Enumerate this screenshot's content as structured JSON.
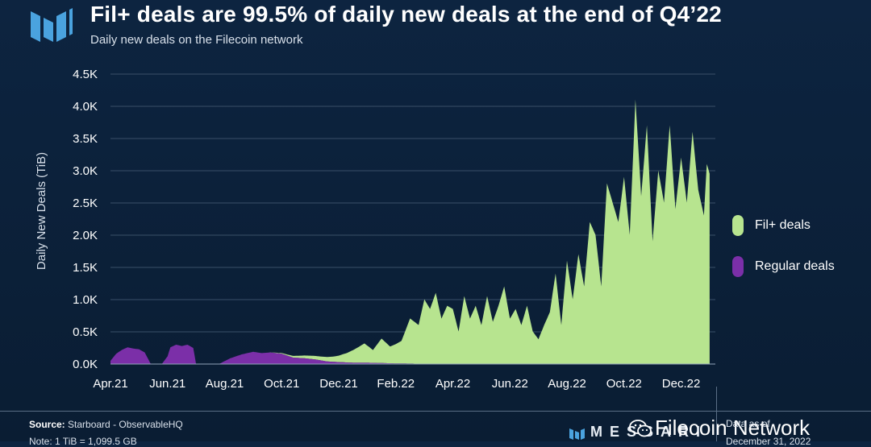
{
  "header": {
    "title": "Fil+ deals are 99.5% of daily new deals at the end of Q4’22",
    "subtitle": "Daily new deals on the Filecoin network"
  },
  "footer": {
    "source_label": "Source:",
    "source_text": "Starboard - ObservableHQ",
    "note": "Note: 1 TiB = 1,099.5 GB",
    "brand": "MESSARI",
    "wechat": "Filecoin Network",
    "data_as_of": "Data as of",
    "data_date": "December 31, 2022"
  },
  "colors": {
    "background": "#0b1f36",
    "fil_plus": "#b7e48f",
    "regular": "#7b2fa8",
    "grid": "#3a4f68"
  },
  "chart_data": {
    "type": "area",
    "title": "Fil+ deals are 99.5% of daily new deals at the end of Q4’22",
    "subtitle": "Daily new deals on the Filecoin network",
    "ylabel": "Daily New Deals (TiB)",
    "xlabel": "",
    "ylim": [
      0,
      4500
    ],
    "yticks": [
      0,
      500,
      1000,
      1500,
      2000,
      2500,
      3000,
      3500,
      4000,
      4500
    ],
    "ytick_labels": [
      "0.0K",
      "0.5K",
      "1.0K",
      "1.5K",
      "2.0K",
      "2.5K",
      "3.0K",
      "3.5K",
      "4.0K",
      "4.5K"
    ],
    "xlim": [
      0,
      21.2
    ],
    "xtick_positions": [
      0,
      2,
      4,
      6,
      8,
      10,
      12,
      14,
      16,
      18,
      20
    ],
    "xtick_labels": [
      "Apr.21",
      "Jun.21",
      "Aug.21",
      "Oct.21",
      "Dec.21",
      "Feb.22",
      "Apr.22",
      "Jun.22",
      "Aug.22",
      "Oct.22",
      "Dec.22"
    ],
    "x_unit": "months since Apr 2021",
    "grid": true,
    "legend_position": "right",
    "stacked": true,
    "series": [
      {
        "name": "Regular deals",
        "color": "#7b2fa8",
        "x": [
          0,
          0.2,
          0.4,
          0.6,
          0.8,
          1.0,
          1.2,
          1.4,
          1.5,
          1.8,
          2.0,
          2.1,
          2.3,
          2.5,
          2.7,
          2.9,
          3.0,
          3.4,
          3.8,
          4.2,
          4.6,
          5.0,
          5.3,
          5.6,
          6.0,
          6.4,
          6.8,
          7.2,
          7.6,
          8.0,
          8.5,
          9.0,
          9.5,
          10.0,
          11.0,
          12.0,
          14.0,
          16.0,
          18.0,
          20.0,
          21.0
        ],
        "y": [
          50,
          160,
          220,
          260,
          240,
          230,
          180,
          10,
          0,
          0,
          120,
          260,
          300,
          280,
          300,
          250,
          0,
          0,
          0,
          90,
          150,
          190,
          170,
          180,
          160,
          100,
          90,
          70,
          40,
          30,
          20,
          20,
          15,
          10,
          5,
          5,
          5,
          5,
          5,
          5,
          5
        ]
      },
      {
        "name": "Fil+ deals",
        "color": "#b7e48f",
        "x": [
          0,
          4.5,
          5.5,
          6.0,
          6.5,
          7.0,
          7.4,
          7.8,
          8.0,
          8.3,
          8.6,
          8.9,
          9.2,
          9.5,
          9.8,
          10.0,
          10.2,
          10.5,
          10.8,
          11.0,
          11.2,
          11.4,
          11.6,
          11.8,
          12.0,
          12.2,
          12.4,
          12.6,
          12.8,
          13.0,
          13.2,
          13.4,
          13.6,
          13.8,
          14.0,
          14.2,
          14.4,
          14.6,
          14.8,
          15.0,
          15.2,
          15.4,
          15.6,
          15.8,
          16.0,
          16.2,
          16.4,
          16.6,
          16.8,
          17.0,
          17.2,
          17.4,
          17.6,
          17.8,
          18.0,
          18.2,
          18.4,
          18.6,
          18.8,
          19.0,
          19.2,
          19.4,
          19.6,
          19.8,
          20.0,
          20.2,
          20.4,
          20.6,
          20.8,
          20.9,
          21.0
        ],
        "y": [
          0,
          0,
          0,
          10,
          30,
          50,
          60,
          80,
          100,
          150,
          220,
          300,
          200,
          380,
          260,
          300,
          350,
          700,
          600,
          1000,
          850,
          1100,
          700,
          900,
          850,
          500,
          1050,
          700,
          900,
          600,
          1050,
          650,
          900,
          1200,
          700,
          850,
          600,
          900,
          500,
          380,
          600,
          800,
          1400,
          600,
          1600,
          1000,
          1700,
          1200,
          2200,
          2000,
          1200,
          2800,
          2500,
          2200,
          2900,
          2000,
          4100,
          2600,
          3700,
          1900,
          3000,
          2500,
          3700,
          2400,
          3200,
          2500,
          3600,
          2700,
          2300,
          3100,
          2950
        ]
      }
    ]
  }
}
